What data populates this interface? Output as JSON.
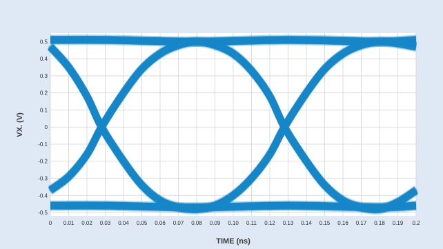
{
  "chart_data": {
    "type": "line",
    "title": "",
    "xlabel": "TIME (ns)",
    "ylabel": "VX. (V)",
    "xlim": [
      0,
      0.2
    ],
    "ylim": [
      -0.52,
      0.55
    ],
    "x_ticks": [
      "0",
      "0.01",
      "0.02",
      "0.03",
      "0.04",
      "0.05",
      "0.06",
      "0.07",
      "0.08",
      "0.09",
      "0.10",
      "0.11",
      "0.12",
      "0.13",
      "0.14",
      "0.15",
      "0.16",
      "0.17",
      "0.18",
      "0.19",
      "0.2"
    ],
    "x_tick_values": [
      0,
      0.01,
      0.02,
      0.03,
      0.04,
      0.05,
      0.06,
      0.07,
      0.08,
      0.09,
      0.1,
      0.11,
      0.12,
      0.13,
      0.14,
      0.15,
      0.16,
      0.17,
      0.18,
      0.19,
      0.2
    ],
    "y_ticks": [
      "0.5",
      "0.4",
      "0.3",
      "0.2",
      "0.1",
      "0",
      "-0.1",
      "-0.2",
      "-0.3",
      "-0.4",
      "-0.5"
    ],
    "y_tick_values": [
      0.5,
      0.4,
      0.3,
      0.2,
      0.1,
      0,
      -0.1,
      -0.2,
      -0.3,
      -0.4,
      -0.5
    ],
    "grid": true,
    "series": [
      {
        "x": [
          0,
          0.03,
          0.08,
          0.13,
          0.18,
          0.2
        ],
        "values": [
          0.51,
          0.51,
          0.5,
          0.51,
          0.5,
          0.51
        ]
      },
      {
        "x": [
          0,
          0.03,
          0.08,
          0.13,
          0.18,
          0.2
        ],
        "values": [
          -0.46,
          -0.46,
          -0.47,
          -0.46,
          -0.47,
          -0.46
        ]
      },
      {
        "x": [
          0,
          0.01,
          0.02,
          0.028,
          0.04,
          0.05,
          0.06,
          0.07,
          0.08,
          0.09,
          0.1,
          0.11,
          0.12,
          0.128,
          0.14,
          0.15,
          0.16,
          0.17,
          0.18,
          0.19,
          0.2
        ],
        "values": [
          -0.37,
          -0.29,
          -0.16,
          0.0,
          0.2,
          0.34,
          0.43,
          0.48,
          0.5,
          0.48,
          0.43,
          0.33,
          0.18,
          0.0,
          -0.2,
          -0.34,
          -0.43,
          -0.47,
          -0.48,
          -0.44,
          -0.37
        ]
      },
      {
        "x": [
          0,
          0.01,
          0.02,
          0.028,
          0.04,
          0.05,
          0.06,
          0.07,
          0.08,
          0.09,
          0.1,
          0.11,
          0.12,
          0.128,
          0.14,
          0.15,
          0.16,
          0.17,
          0.18,
          0.19,
          0.2
        ],
        "values": [
          0.47,
          0.35,
          0.18,
          0.0,
          -0.2,
          -0.34,
          -0.43,
          -0.47,
          -0.48,
          -0.46,
          -0.4,
          -0.3,
          -0.16,
          0.0,
          0.2,
          0.34,
          0.43,
          0.48,
          0.5,
          0.49,
          0.47
        ]
      }
    ],
    "colors": {
      "trace": "#1586c8",
      "background": "#dfe9f6",
      "plot_area": "#ffffff",
      "grid": "#d4d4d4"
    }
  }
}
